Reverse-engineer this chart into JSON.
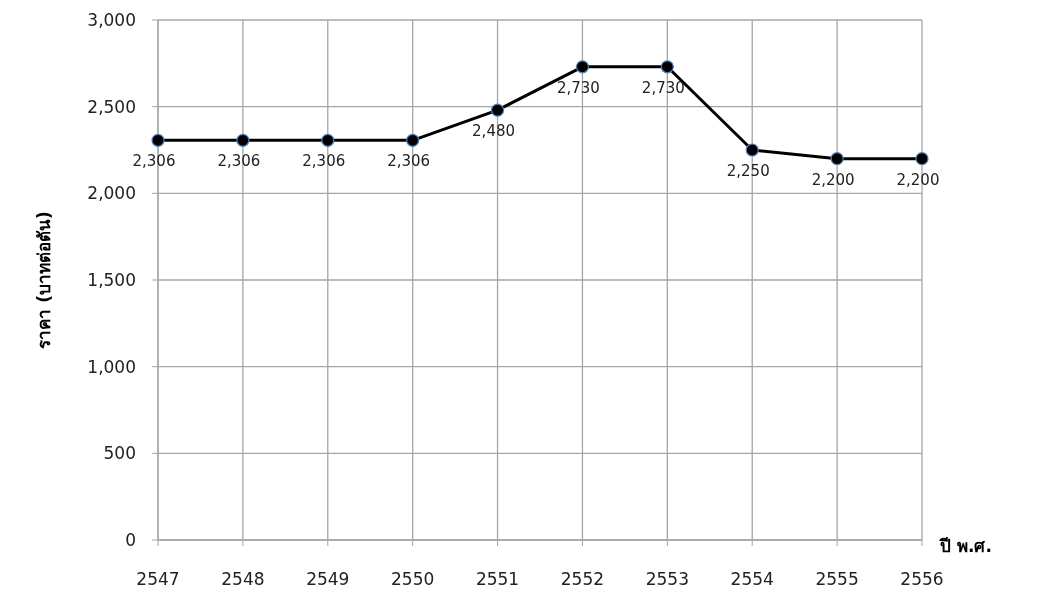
{
  "chart_data": {
    "type": "line",
    "xlabel": "ปี พ.ศ.",
    "ylabel": "ราคา (บาทต่อตัน)",
    "categories": [
      "2547",
      "2548",
      "2549",
      "2550",
      "2551",
      "2552",
      "2553",
      "2554",
      "2555",
      "2556"
    ],
    "series": [
      {
        "color": "#000000",
        "values": [
          2306,
          2306,
          2306,
          2306,
          2480,
          2730,
          2730,
          2250,
          2200,
          2200
        ],
        "value_labels": [
          "2,306",
          "2,306",
          "2,306",
          "2,306",
          "2,480",
          "2,730",
          "2,730",
          "2,250",
          "2,200",
          "2,200"
        ]
      }
    ],
    "ylim": [
      0,
      3000
    ],
    "yticks": [
      {
        "value": 0,
        "label": "0"
      },
      {
        "value": 500,
        "label": "500"
      },
      {
        "value": 1000,
        "label": "1,000"
      },
      {
        "value": 1500,
        "label": "1,500"
      },
      {
        "value": 2000,
        "label": "2,000"
      },
      {
        "value": 2500,
        "label": "2,500"
      },
      {
        "value": 3000,
        "label": "3,000"
      }
    ],
    "grid": true,
    "marker": "circle",
    "line_style": "solid"
  }
}
